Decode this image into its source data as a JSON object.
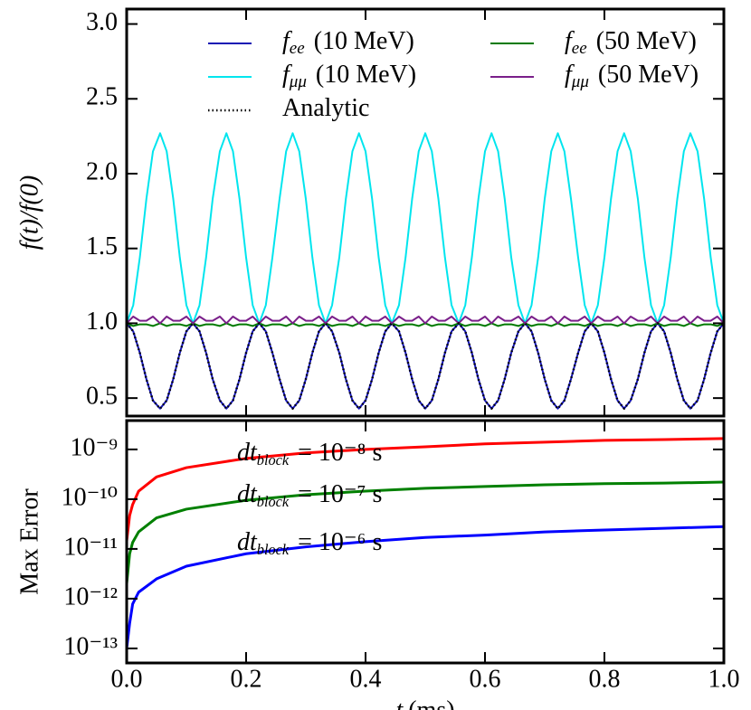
{
  "chart_data": [
    {
      "type": "line",
      "ylabel": "f(t)/f(0)",
      "x": [
        0,
        0.011,
        0.022,
        0.033,
        0.044,
        0.056,
        0.067,
        0.078,
        0.089,
        0.1,
        0.111,
        0.122,
        0.133,
        0.144,
        0.156,
        0.167,
        0.178,
        0.189,
        0.2,
        0.211,
        0.222,
        0.233,
        0.244,
        0.256,
        0.267,
        0.278,
        0.289,
        0.3,
        0.311,
        0.322,
        0.333,
        0.344,
        0.356,
        0.367,
        0.378,
        0.389,
        0.4,
        0.411,
        0.422,
        0.433,
        0.444,
        0.456,
        0.467,
        0.478,
        0.489,
        0.5,
        0.511,
        0.522,
        0.533,
        0.544,
        0.556,
        0.567,
        0.578,
        0.589,
        0.6,
        0.611,
        0.622,
        0.633,
        0.644,
        0.656,
        0.667,
        0.678,
        0.689,
        0.7,
        0.711,
        0.722,
        0.733,
        0.744,
        0.756,
        0.767,
        0.778,
        0.789,
        0.8,
        0.811,
        0.822,
        0.833,
        0.844,
        0.856,
        0.867,
        0.878,
        0.889,
        0.9,
        0.911,
        0.922,
        0.933,
        0.944,
        0.956,
        0.967,
        0.978,
        0.989,
        1
      ],
      "series": [
        {
          "symbol": "f",
          "subscript": "ee",
          "name": "(10 MeV)",
          "color": "#1414b4",
          "style": "solid",
          "values": [
            1,
            0.946,
            0.803,
            0.627,
            0.484,
            0.43,
            0.484,
            0.627,
            0.803,
            0.946,
            1,
            0.946,
            0.803,
            0.627,
            0.484,
            0.43,
            0.484,
            0.627,
            0.803,
            0.946,
            1,
            0.946,
            0.803,
            0.627,
            0.484,
            0.43,
            0.484,
            0.627,
            0.803,
            0.946,
            1,
            0.946,
            0.803,
            0.627,
            0.484,
            0.43,
            0.484,
            0.627,
            0.803,
            0.946,
            1,
            0.946,
            0.803,
            0.627,
            0.484,
            0.43,
            0.484,
            0.627,
            0.803,
            0.946,
            1,
            0.946,
            0.803,
            0.627,
            0.484,
            0.43,
            0.484,
            0.627,
            0.803,
            0.946,
            1,
            0.946,
            0.803,
            0.627,
            0.484,
            0.43,
            0.484,
            0.627,
            0.803,
            0.946,
            1,
            0.946,
            0.803,
            0.627,
            0.484,
            0.43,
            0.484,
            0.627,
            0.803,
            0.946,
            1,
            0.946,
            0.803,
            0.627,
            0.484,
            0.43,
            0.484,
            0.627,
            0.803,
            0.946,
            1
          ]
        },
        {
          "symbol": "f",
          "subscript": "μμ",
          "name": "(10 MeV)",
          "color": "#00e5ee",
          "style": "solid",
          "values": [
            1,
            1.121,
            1.439,
            1.831,
            2.149,
            2.27,
            2.149,
            1.831,
            1.439,
            1.121,
            1,
            1.121,
            1.439,
            1.831,
            2.149,
            2.27,
            2.149,
            1.831,
            1.439,
            1.121,
            1,
            1.121,
            1.439,
            1.831,
            2.149,
            2.27,
            2.149,
            1.831,
            1.439,
            1.121,
            1,
            1.121,
            1.439,
            1.831,
            2.149,
            2.27,
            2.149,
            1.831,
            1.439,
            1.121,
            1,
            1.121,
            1.439,
            1.831,
            2.149,
            2.27,
            2.149,
            1.831,
            1.439,
            1.121,
            1,
            1.121,
            1.439,
            1.831,
            2.149,
            2.27,
            2.149,
            1.831,
            1.439,
            1.121,
            1,
            1.121,
            1.439,
            1.831,
            2.149,
            2.27,
            2.149,
            1.831,
            1.439,
            1.121,
            1,
            1.121,
            1.439,
            1.831,
            2.149,
            2.27,
            2.149,
            1.831,
            1.439,
            1.121,
            1,
            1.121,
            1.439,
            1.831,
            2.149,
            2.27,
            2.149,
            1.831,
            1.439,
            1.121,
            1
          ]
        },
        {
          "name": "Analytic",
          "color": "#000000",
          "style": "dotted",
          "values": [
            1,
            0.946,
            0.803,
            0.627,
            0.484,
            0.43,
            0.484,
            0.627,
            0.803,
            0.946,
            1,
            0.946,
            0.803,
            0.627,
            0.484,
            0.43,
            0.484,
            0.627,
            0.803,
            0.946,
            1,
            0.946,
            0.803,
            0.627,
            0.484,
            0.43,
            0.484,
            0.627,
            0.803,
            0.946,
            1,
            0.946,
            0.803,
            0.627,
            0.484,
            0.43,
            0.484,
            0.627,
            0.803,
            0.946,
            1,
            0.946,
            0.803,
            0.627,
            0.484,
            0.43,
            0.484,
            0.627,
            0.803,
            0.946,
            1,
            0.946,
            0.803,
            0.627,
            0.484,
            0.43,
            0.484,
            0.627,
            0.803,
            0.946,
            1,
            0.946,
            0.803,
            0.627,
            0.484,
            0.43,
            0.484,
            0.627,
            0.803,
            0.946,
            1,
            0.946,
            0.803,
            0.627,
            0.484,
            0.43,
            0.484,
            0.627,
            0.803,
            0.946,
            1,
            0.946,
            0.803,
            0.627,
            0.484,
            0.43,
            0.484,
            0.627,
            0.803,
            0.946,
            1
          ]
        },
        {
          "symbol": "f",
          "subscript": "ee",
          "name": "(50 MeV)",
          "color": "#007a00",
          "style": "solid",
          "values": [
            1,
            0.982,
            0.993,
            0.993,
            0.982,
            1,
            0.982,
            0.993,
            0.993,
            0.982,
            1,
            0.982,
            0.993,
            0.993,
            0.982,
            1,
            0.982,
            0.993,
            0.993,
            0.982,
            1,
            0.982,
            0.993,
            0.993,
            0.982,
            1,
            0.982,
            0.993,
            0.993,
            0.982,
            1,
            0.982,
            0.993,
            0.993,
            0.982,
            1,
            0.982,
            0.993,
            0.993,
            0.982,
            1,
            0.982,
            0.993,
            0.993,
            0.982,
            1,
            0.982,
            0.993,
            0.993,
            0.982,
            1,
            0.982,
            0.993,
            0.993,
            0.982,
            1,
            0.982,
            0.993,
            0.993,
            0.982,
            1,
            0.982,
            0.993,
            0.993,
            0.982,
            1,
            0.982,
            0.993,
            0.993,
            0.982,
            1,
            0.982,
            0.993,
            0.993,
            0.982,
            1,
            0.982,
            0.993,
            0.993,
            0.982,
            1,
            0.982,
            0.993,
            0.993,
            0.982,
            1,
            0.982,
            0.993,
            0.993,
            0.982,
            1
          ]
        },
        {
          "symbol": "f",
          "subscript": "μμ",
          "name": "(50 MeV)",
          "color": "#7a1f8a",
          "style": "solid",
          "values": [
            1,
            1.045,
            1.017,
            1.017,
            1.045,
            1,
            1.045,
            1.017,
            1.017,
            1.045,
            1,
            1.045,
            1.017,
            1.017,
            1.045,
            1,
            1.045,
            1.017,
            1.017,
            1.045,
            1,
            1.045,
            1.017,
            1.017,
            1.045,
            1,
            1.045,
            1.017,
            1.017,
            1.045,
            1,
            1.045,
            1.017,
            1.017,
            1.045,
            1,
            1.045,
            1.017,
            1.017,
            1.045,
            1,
            1.045,
            1.017,
            1.017,
            1.045,
            1,
            1.045,
            1.017,
            1.017,
            1.045,
            1,
            1.045,
            1.017,
            1.017,
            1.045,
            1,
            1.045,
            1.017,
            1.017,
            1.045,
            1,
            1.045,
            1.017,
            1.017,
            1.045,
            1,
            1.045,
            1.017,
            1.017,
            1.045,
            1,
            1.045,
            1.017,
            1.017,
            1.045,
            1,
            1.045,
            1.017,
            1.017,
            1.045,
            1,
            1.045,
            1.017,
            1.017,
            1.045,
            1,
            1.045,
            1.017,
            1.017,
            1.045,
            1
          ]
        }
      ],
      "xlim": [
        0,
        1
      ],
      "xticks": [
        0,
        0.2,
        0.4,
        0.6,
        0.8,
        1
      ],
      "show_xtick_labels": false,
      "ylim": [
        0.38,
        3.1
      ],
      "yticks": [
        0.5,
        {
          "value": 1,
          "label": "1.0"
        },
        1.5,
        {
          "value": 2,
          "label": "2.0"
        },
        2.5,
        {
          "value": 3,
          "label": "3.0"
        }
      ],
      "legend": "upper center"
    },
    {
      "type": "line",
      "ylabel": "Max Error",
      "xlabel_symbol": "t",
      "xlabel": "(ms)",
      "x": [
        0,
        0.005,
        0.01,
        0.02,
        0.05,
        0.1,
        0.2,
        0.3,
        0.4,
        0.5,
        0.6,
        0.7,
        0.8,
        0.9,
        1
      ],
      "series": [
        {
          "color": "#ff0000",
          "values": [
            1.45e-11,
            4.7e-11,
            7.8e-11,
            1.45e-10,
            2.8e-10,
            4.3e-10,
            6.6e-10,
            8.5e-10,
            1e-09,
            1.13e-09,
            1.29e-09,
            1.4e-09,
            1.52e-09,
            1.58e-09,
            1.65e-09
          ]
        },
        {
          "color": "#008000",
          "values": [
            2e-12,
            8e-12,
            1.35e-11,
            2.2e-11,
            4.2e-11,
            6.3e-11,
            9.5e-11,
            1.23e-10,
            1.45e-10,
            1.65e-10,
            1.8e-10,
            1.95e-10,
            2.05e-10,
            2.1e-10,
            2.2e-10
          ]
        },
        {
          "color": "#0000ff",
          "values": [
            1e-13,
            3.2e-13,
            7.8e-13,
            1.35e-12,
            2.5e-12,
            4.5e-12,
            8e-12,
            1.1e-11,
            1.4e-11,
            1.7e-11,
            1.9e-11,
            2.2e-11,
            2.4e-11,
            2.6e-11,
            2.8e-11
          ]
        }
      ],
      "annotations": [
        {
          "symbol": "dt",
          "subscript": "block",
          "text": "= 10⁻⁸ s"
        },
        {
          "symbol": "dt",
          "subscript": "block",
          "text": "= 10⁻⁷ s"
        },
        {
          "symbol": "dt",
          "subscript": "block",
          "text": "= 10⁻⁶ s"
        }
      ],
      "xlim": [
        0,
        1
      ],
      "xticks": [
        {
          "value": 0,
          "label": "0.0"
        },
        0.2,
        0.4,
        0.6,
        0.8,
        {
          "value": 1,
          "label": "1.0"
        }
      ],
      "show_xtick_labels": true,
      "yscale": "log",
      "ylim": [
        5.1e-14,
        3.8e-09
      ],
      "yticks": [
        {
          "value": 1e-09,
          "label": "10⁻⁹"
        },
        {
          "value": 1e-10,
          "label": "10⁻¹⁰"
        },
        {
          "value": 1e-11,
          "label": "10⁻¹¹"
        },
        {
          "value": 1e-12,
          "label": "10⁻¹²"
        },
        {
          "value": 1e-13,
          "label": "10⁻¹³"
        }
      ]
    }
  ]
}
